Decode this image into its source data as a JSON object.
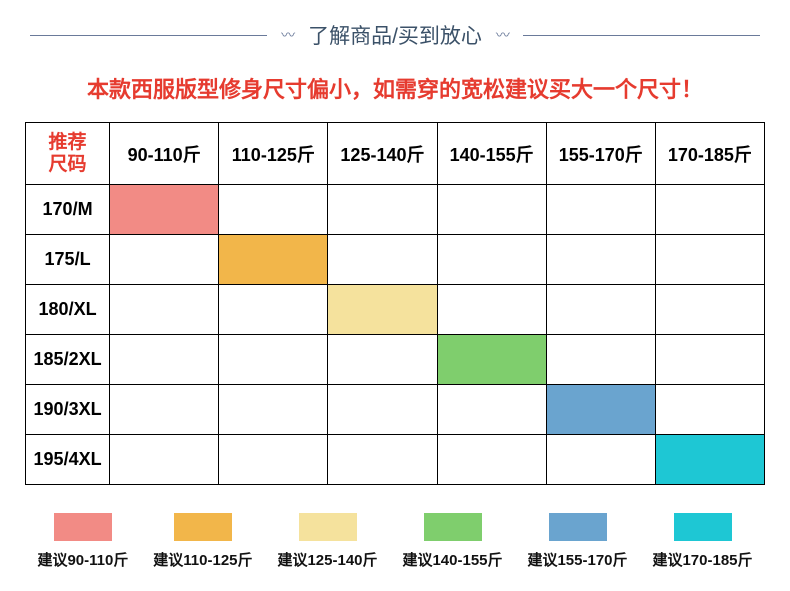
{
  "header": {
    "title": "了解商品/买到放心"
  },
  "warning": "本款西服版型修身尺寸偏小，如需穿的宽松建议买大一个尺寸！",
  "table": {
    "corner_line1": "推荐",
    "corner_line2": "尺码",
    "columns": [
      "90-110斤",
      "110-125斤",
      "125-140斤",
      "140-155斤",
      "155-170斤",
      "170-185斤"
    ],
    "rows": [
      "170/M",
      "175/L",
      "180/XL",
      "185/2XL",
      "190/3XL",
      "195/4XL"
    ],
    "fills": [
      [
        0,
        null,
        null,
        null,
        null,
        null
      ],
      [
        null,
        1,
        null,
        null,
        null,
        null
      ],
      [
        null,
        null,
        2,
        null,
        null,
        null
      ],
      [
        null,
        null,
        null,
        3,
        null,
        null
      ],
      [
        null,
        null,
        null,
        null,
        4,
        null
      ],
      [
        null,
        null,
        null,
        null,
        null,
        5
      ]
    ],
    "fill_colors": [
      "#f28b85",
      "#f2b64a",
      "#f5e29d",
      "#7fce6d",
      "#6aa4cf",
      "#1ec7d4"
    ]
  },
  "legend": {
    "items": [
      {
        "color": "#f28b85",
        "label": "建议90-110斤"
      },
      {
        "color": "#f2b64a",
        "label": "建议110-125斤"
      },
      {
        "color": "#f5e29d",
        "label": "建议125-140斤"
      },
      {
        "color": "#7fce6d",
        "label": "建议140-155斤"
      },
      {
        "color": "#6aa4cf",
        "label": "建议155-170斤"
      },
      {
        "color": "#1ec7d4",
        "label": "建议170-185斤"
      }
    ]
  }
}
